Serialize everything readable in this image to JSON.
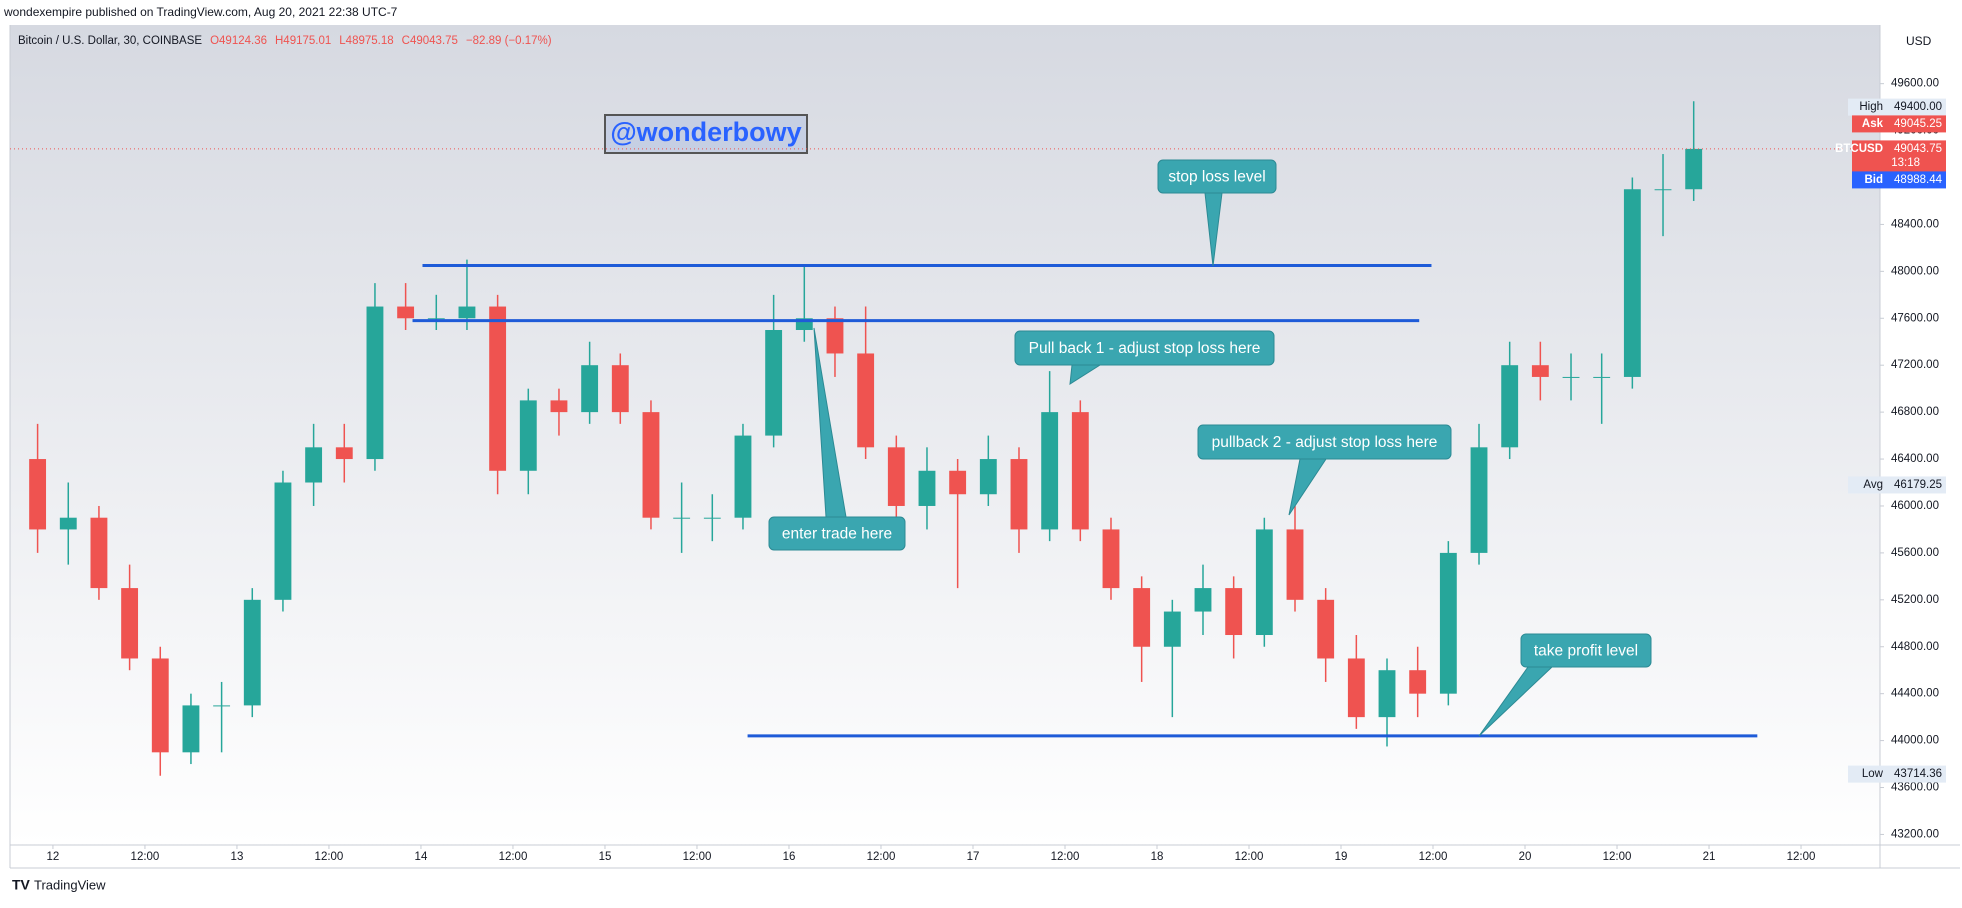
{
  "header": {
    "published": "wondexempire published on TradingView.com, Aug 20, 2021 22:38 UTC-7",
    "brand": "TradingView"
  },
  "chart_data": {
    "type": "candlestick",
    "title": "Bitcoin / U.S. Dollar, 30, COINBASE",
    "ohlc_legend": [
      "O49124.36",
      "H49175.01",
      "L48975.18",
      "C49043.75",
      "−82.89 (−0.17%)"
    ],
    "currency": "USD",
    "x": [
      -2,
      2,
      6,
      10,
      14,
      18,
      22,
      26,
      30,
      34,
      38,
      42,
      46,
      50,
      54,
      58,
      62,
      66,
      70,
      74,
      78,
      82,
      86,
      90,
      94,
      98,
      102,
      106,
      110,
      114,
      118,
      122,
      126,
      130,
      134,
      138,
      142,
      146,
      150,
      154,
      158,
      162,
      166,
      170,
      174,
      178,
      182,
      186,
      190,
      194,
      198,
      202,
      206,
      210,
      214
    ],
    "open": [
      46400,
      45800,
      45900,
      45300,
      44700,
      43900,
      44300,
      44300,
      45200,
      46200,
      46500,
      46400,
      47700,
      47600,
      47600,
      47700,
      46300,
      46900,
      46800,
      47200,
      46800,
      45900,
      45900,
      45900,
      46600,
      47500,
      47600,
      47300,
      46500,
      46000,
      46300,
      46100,
      46400,
      45800,
      46800,
      45800,
      45300,
      44800,
      45100,
      45300,
      44900,
      45800,
      45200,
      44700,
      44200,
      44600,
      44400,
      45600,
      46500,
      47200,
      47100,
      47100,
      47100,
      48700,
      48700
    ],
    "high": [
      46700,
      46200,
      46000,
      45500,
      44800,
      44400,
      44500,
      45300,
      46300,
      46700,
      46700,
      47900,
      47900,
      47800,
      48100,
      47800,
      47000,
      47000,
      47400,
      47300,
      46900,
      46200,
      46100,
      46700,
      47800,
      48050,
      47700,
      47700,
      46600,
      46500,
      46400,
      46600,
      46500,
      47150,
      46900,
      45900,
      45400,
      45200,
      45500,
      45400,
      45900,
      46000,
      45300,
      44900,
      44700,
      44800,
      45700,
      46700,
      47400,
      47400,
      47300,
      47300,
      48800,
      49000,
      49450
    ],
    "low": [
      45600,
      45500,
      45200,
      44600,
      43700,
      43800,
      43900,
      44200,
      45100,
      46000,
      46200,
      46300,
      47500,
      47500,
      47500,
      46100,
      46100,
      46600,
      46700,
      46700,
      45800,
      45600,
      45700,
      45800,
      46500,
      47400,
      47100,
      46400,
      45900,
      45800,
      45300,
      46000,
      45600,
      45700,
      45700,
      45200,
      44500,
      44200,
      44900,
      44700,
      44800,
      45100,
      44500,
      44100,
      43950,
      44200,
      44300,
      45500,
      46400,
      46900,
      46900,
      46700,
      47000,
      48300,
      48600
    ],
    "close": [
      45800,
      45900,
      45300,
      44700,
      43900,
      44300,
      44300,
      45200,
      46200,
      46500,
      46400,
      47700,
      47600,
      47600,
      47700,
      46300,
      46900,
      46800,
      47200,
      46800,
      45900,
      45900,
      45900,
      46600,
      47500,
      47600,
      47300,
      46500,
      46000,
      46300,
      46100,
      46400,
      45800,
      46800,
      45800,
      45300,
      44800,
      45100,
      45300,
      44900,
      45800,
      45200,
      44700,
      44200,
      44600,
      44400,
      45600,
      46500,
      47200,
      47100,
      47100,
      47100,
      48700,
      48700,
      49043.75
    ],
    "up_color": "#26a69a",
    "down_color": "#ef5350",
    "xlim": [
      -5.6,
      238.3
    ],
    "xticks": [
      {
        "value": 0,
        "label": "12"
      },
      {
        "value": 12,
        "label": "12:00"
      },
      {
        "value": 24,
        "label": "13"
      },
      {
        "value": 36,
        "label": "12:00"
      },
      {
        "value": 48,
        "label": "14"
      },
      {
        "value": 60,
        "label": "12:00"
      },
      {
        "value": 72,
        "label": "15"
      },
      {
        "value": 84,
        "label": "12:00"
      },
      {
        "value": 96,
        "label": "16"
      },
      {
        "value": 108,
        "label": "12:00"
      },
      {
        "value": 120,
        "label": "17"
      },
      {
        "value": 132,
        "label": "12:00"
      },
      {
        "value": 144,
        "label": "18"
      },
      {
        "value": 156,
        "label": "12:00"
      },
      {
        "value": 168,
        "label": "19"
      },
      {
        "value": 180,
        "label": "12:00"
      },
      {
        "value": 192,
        "label": "20"
      },
      {
        "value": 204,
        "label": "12:00"
      },
      {
        "value": 216,
        "label": "21"
      },
      {
        "value": 228,
        "label": "12:00"
      }
    ],
    "ylim": [
      43110,
      50100
    ],
    "yticks": [
      {
        "value": 43200,
        "label": "43200.00"
      },
      {
        "value": 43600,
        "label": "43600.00"
      },
      {
        "value": 44000,
        "label": "44000.00"
      },
      {
        "value": 44400,
        "label": "44400.00"
      },
      {
        "value": 44800,
        "label": "44800.00"
      },
      {
        "value": 45200,
        "label": "45200.00"
      },
      {
        "value": 45600,
        "label": "45600.00"
      },
      {
        "value": 46000,
        "label": "46000.00"
      },
      {
        "value": 46400,
        "label": "46400.00"
      },
      {
        "value": 46800,
        "label": "46800.00"
      },
      {
        "value": 47200,
        "label": "47200.00"
      },
      {
        "value": 47600,
        "label": "47600.00"
      },
      {
        "value": 48000,
        "label": "48000.00"
      },
      {
        "value": 48400,
        "label": "48400.00"
      },
      {
        "value": 48800,
        "label": "48800.00"
      },
      {
        "value": 49200,
        "label": "49200.00"
      },
      {
        "value": 49600,
        "label": "49600.00"
      }
    ],
    "price_tags": [
      {
        "name": "High",
        "price": 49400,
        "price_label": "49400.00",
        "color": "#e3ebf5"
      },
      {
        "name": "Ask",
        "price": 49045.25,
        "price_label": "49045.25",
        "color": "#ef5350"
      },
      {
        "name": "BTCUSD",
        "price": 49043.75,
        "price_label": "49043.75",
        "countdown": "13:18",
        "color": "#ef5350"
      },
      {
        "name": "Bid",
        "price": 48988.44,
        "price_label": "48988.44",
        "color": "#2962ff"
      },
      {
        "name": "Avg",
        "price": 46179.25,
        "price_label": "46179.25",
        "color": "#e3ebf5"
      },
      {
        "name": "Low",
        "price": 43714.36,
        "price_label": "43714.36",
        "color": "#e3ebf5"
      }
    ],
    "trend_lines": [
      {
        "price": 48050,
        "start": 48.2,
        "end": 179.8
      },
      {
        "price": 47580,
        "start": 46.9,
        "end": 178.2
      },
      {
        "price": 44040,
        "start": 90.6,
        "end": 222.3
      }
    ],
    "line_color": "#1e5bd8",
    "annotations": [
      "stop loss level",
      "Pull back 1 - adjust stop loss here",
      "pullback 2 - adjust stop loss here",
      "enter trade here",
      "take profit level"
    ],
    "watermark": "@wonderbowy"
  }
}
